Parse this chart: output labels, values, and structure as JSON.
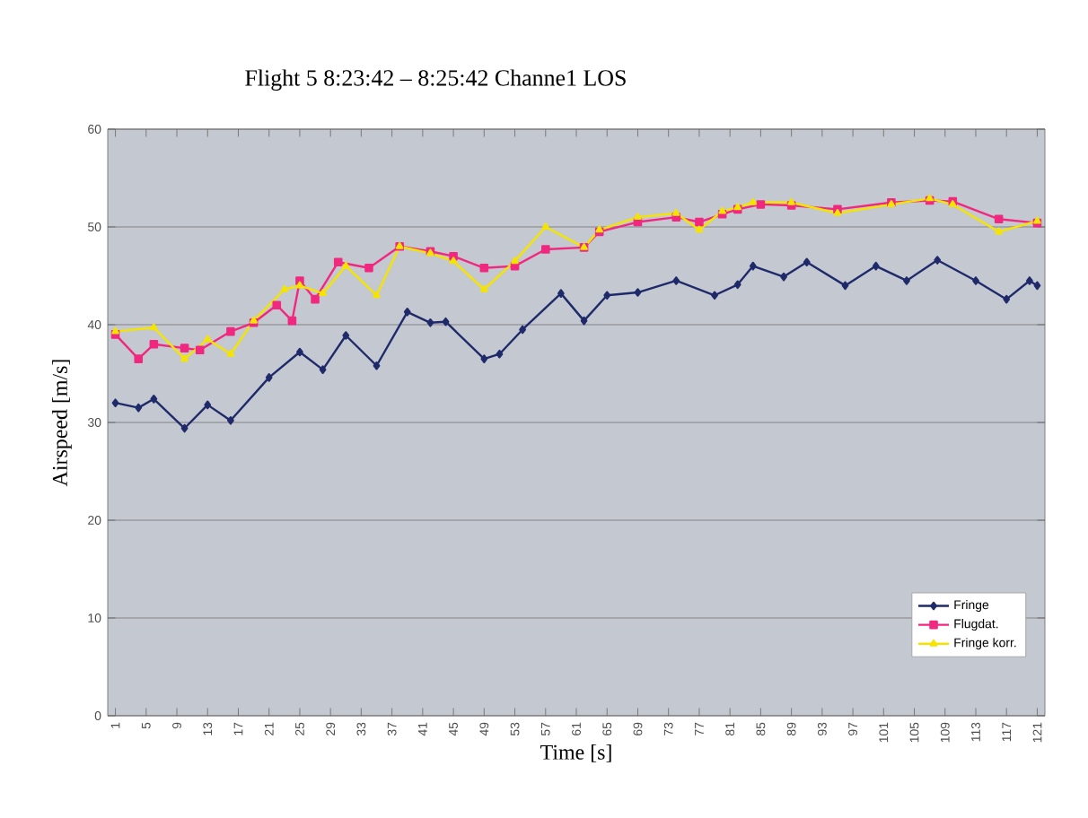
{
  "chart_data": {
    "type": "line",
    "title": "Flight 5   8:23:42 – 8:25:42   Channe1 LOS",
    "xlabel": "Time [s]",
    "ylabel": "Airspeed [m/s]",
    "xlim": [
      0,
      122
    ],
    "xticks": [
      1,
      5,
      9,
      13,
      17,
      21,
      25,
      29,
      33,
      37,
      41,
      45,
      49,
      53,
      57,
      61,
      65,
      69,
      73,
      77,
      81,
      85,
      89,
      93,
      97,
      101,
      105,
      109,
      113,
      117,
      121
    ],
    "ylim": [
      0,
      60
    ],
    "yticks": [
      0,
      10,
      20,
      30,
      40,
      50,
      60
    ],
    "grid": "y",
    "legend": "bottom right",
    "line_style": "solid",
    "series": [
      {
        "name": "Fringe",
        "color": "#1f2a6b",
        "marker": "diamond",
        "x": [
          1,
          4,
          6,
          10,
          13,
          16,
          21,
          25,
          28,
          31,
          35,
          39,
          42,
          44,
          49,
          51,
          54,
          59,
          62,
          65,
          69,
          74,
          79,
          82,
          84,
          88,
          91,
          96,
          100,
          104,
          108,
          113,
          117,
          120,
          121
        ],
        "values": [
          32,
          31.5,
          32.4,
          29.4,
          31.8,
          30.2,
          34.6,
          37.2,
          35.4,
          38.9,
          35.8,
          41.3,
          40.2,
          40.3,
          36.5,
          37,
          39.5,
          43.2,
          40.4,
          43,
          43.3,
          44.5,
          43,
          44.1,
          46,
          44.9,
          46.4,
          44,
          46,
          44.5,
          46.6,
          44.5,
          42.6,
          44.5,
          44
        ]
      },
      {
        "name": "Flugdat.",
        "color": "#f0287f",
        "marker": "square",
        "x": [
          1,
          4,
          6,
          10,
          12,
          16,
          19,
          22,
          24,
          25,
          27,
          30,
          34,
          38,
          42,
          45,
          49,
          53,
          57,
          62,
          64,
          69,
          74,
          77,
          80,
          82,
          85,
          89,
          95,
          102,
          107,
          110,
          116,
          121
        ],
        "values": [
          39,
          36.5,
          38,
          37.6,
          37.4,
          39.3,
          40.2,
          42,
          40.4,
          44.5,
          42.6,
          46.4,
          45.8,
          48,
          47.5,
          47,
          45.8,
          46,
          47.7,
          47.9,
          49.5,
          50.5,
          51,
          50.5,
          51.3,
          51.8,
          52.3,
          52.2,
          51.8,
          52.5,
          52.7,
          52.6,
          50.8,
          50.4
        ]
      },
      {
        "name": "Fringe korr.",
        "color": "#f5e400",
        "marker": "triangle",
        "x": [
          1,
          6,
          10,
          13,
          16,
          19,
          23,
          25,
          28,
          31,
          35,
          38,
          42,
          45,
          49,
          53,
          57,
          62,
          64,
          69,
          74,
          77,
          80,
          82,
          84,
          89,
          95,
          102,
          107,
          110,
          116,
          121
        ],
        "values": [
          39.3,
          39.7,
          36.5,
          38.5,
          37,
          40.4,
          43.6,
          44,
          43.2,
          46,
          43,
          48,
          47.3,
          46.5,
          43.6,
          46.5,
          50,
          47.9,
          49.7,
          51,
          51.4,
          49.7,
          51.6,
          52,
          52.5,
          52.5,
          51.4,
          52.3,
          52.9,
          52.3,
          49.5,
          50.6
        ]
      }
    ]
  }
}
